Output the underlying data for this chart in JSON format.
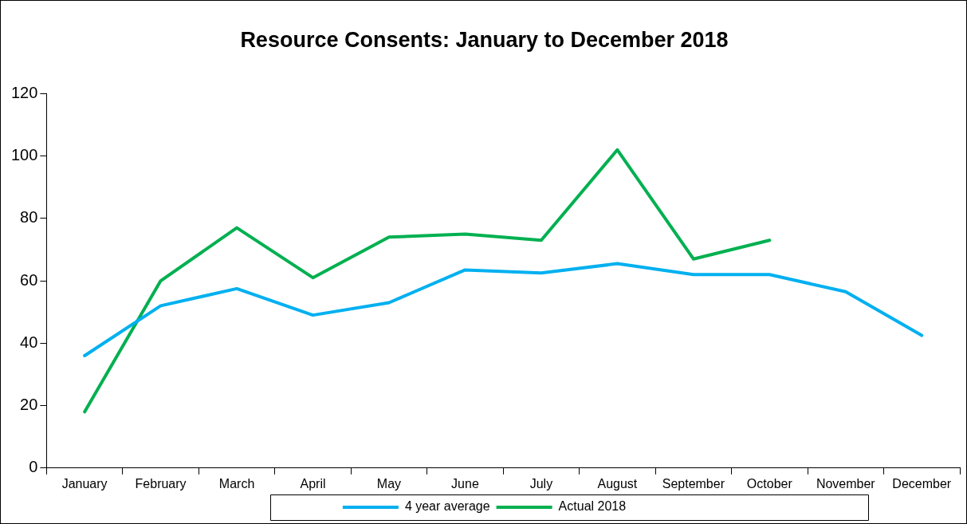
{
  "chart_data": {
    "type": "line",
    "title": "Resource Consents: January to December 2018",
    "categories": [
      "January",
      "February",
      "March",
      "April",
      "May",
      "June",
      "July",
      "August",
      "September",
      "October",
      "November",
      "December"
    ],
    "series": [
      {
        "name": "4 year average",
        "color": "#00b0f0",
        "values": [
          36,
          52,
          57.5,
          49,
          53,
          63.5,
          62.5,
          65.5,
          62,
          62,
          56.5,
          42.5
        ]
      },
      {
        "name": "Actual 2018",
        "color": "#00b050",
        "values": [
          18,
          60,
          77,
          61,
          74,
          75,
          73,
          102,
          67,
          73,
          null,
          null
        ]
      }
    ],
    "ylim": [
      0,
      120
    ],
    "yticks": [
      0,
      20,
      40,
      60,
      80,
      100,
      120
    ],
    "grid": false,
    "legend": "bottom",
    "marker": "none",
    "line_style": "solid"
  }
}
